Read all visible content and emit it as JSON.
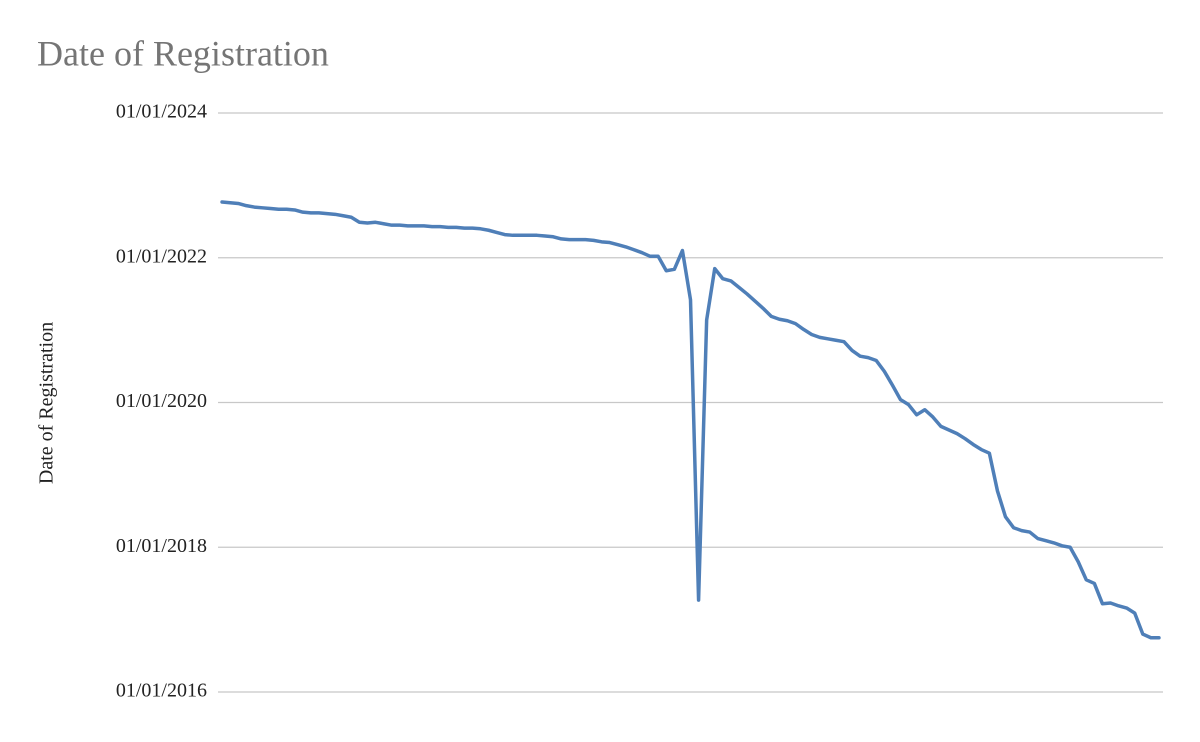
{
  "chart_data": {
    "type": "line",
    "title": "Date of Registration",
    "y_label": "Date of Registration",
    "categories": [
      null,
      null,
      null,
      null,
      null,
      null,
      null,
      null,
      null,
      null,
      null,
      null,
      null,
      null,
      null,
      null,
      null,
      null,
      null,
      null,
      null,
      null,
      null,
      null,
      null,
      null,
      null,
      null,
      null,
      null,
      null,
      null,
      null,
      null,
      null,
      null,
      null,
      null,
      null,
      null,
      null,
      null,
      null,
      null,
      null,
      null,
      null,
      null,
      null,
      null,
      null,
      null,
      null,
      null,
      null,
      null,
      null,
      null,
      null,
      null,
      null,
      null,
      null,
      null,
      null,
      null,
      null,
      null,
      null,
      null,
      null,
      null,
      null,
      null,
      null,
      null,
      null,
      null,
      null,
      null,
      null,
      null,
      null,
      null,
      null,
      null,
      null,
      null,
      null,
      null,
      null,
      null,
      null,
      null,
      null,
      null,
      null,
      null,
      null,
      null,
      null,
      null,
      null,
      null,
      null,
      null,
      null,
      null,
      null,
      null,
      null,
      null,
      null,
      null,
      null,
      null,
      null
    ],
    "series": [
      {
        "name": "Date of Registration",
        "color": "#4f7fb8",
        "values": [
          2022.77,
          2022.76,
          2022.75,
          2022.72,
          2022.7,
          2022.69,
          2022.68,
          2022.67,
          2022.67,
          2022.66,
          2022.63,
          2022.62,
          2022.62,
          2022.61,
          2022.6,
          2022.58,
          2022.56,
          2022.49,
          2022.48,
          2022.49,
          2022.47,
          2022.45,
          2022.45,
          2022.44,
          2022.44,
          2022.44,
          2022.43,
          2022.43,
          2022.42,
          2022.42,
          2022.41,
          2022.41,
          2022.4,
          2022.38,
          2022.35,
          2022.32,
          2022.31,
          2022.31,
          2022.31,
          2022.31,
          2022.3,
          2022.29,
          2022.26,
          2022.25,
          2022.25,
          2022.25,
          2022.24,
          2022.22,
          2022.21,
          2022.18,
          2022.15,
          2022.11,
          2022.07,
          2022.02,
          2022.02,
          2021.82,
          2021.84,
          2022.1,
          2021.42,
          2017.27,
          2021.14,
          2021.85,
          2021.71,
          2021.68,
          2021.59,
          2021.5,
          2021.4,
          2021.3,
          2021.19,
          2021.15,
          2021.13,
          2021.09,
          2021.01,
          2020.94,
          2020.9,
          2020.88,
          2020.86,
          2020.84,
          2020.72,
          2020.64,
          2020.62,
          2020.58,
          2020.43,
          2020.24,
          2020.04,
          2019.97,
          2019.83,
          2019.9,
          2019.8,
          2019.67,
          2019.62,
          2019.57,
          2019.5,
          2019.42,
          2019.35,
          2019.3,
          2018.78,
          2018.42,
          2018.27,
          2018.23,
          2018.21,
          2018.12,
          2018.09,
          2018.06,
          2018.02,
          2018.0,
          2017.8,
          2017.55,
          2017.5,
          2017.22,
          2017.23,
          2017.19,
          2017.16,
          2017.09,
          2016.8,
          2016.75,
          2016.75
        ]
      }
    ],
    "ylim": [
      2016,
      2024
    ],
    "yticks": [
      {
        "value": 2016,
        "label": "01/01/2016"
      },
      {
        "value": 2018,
        "label": "01/01/2018"
      },
      {
        "value": 2020,
        "label": "01/01/2020"
      },
      {
        "value": 2022,
        "label": "01/01/2022"
      },
      {
        "value": 2024,
        "label": "01/01/2024"
      }
    ],
    "grid": true
  }
}
